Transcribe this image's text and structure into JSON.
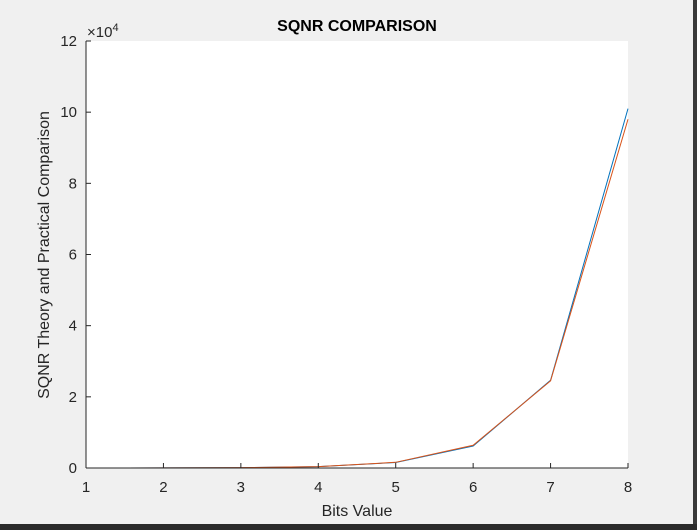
{
  "window": {
    "background": "#f0f0f0"
  },
  "chart_data": {
    "type": "line",
    "title": "SQNR COMPARISON",
    "xlabel": "Bits Value",
    "ylabel": "SQNR Theory and Practical Comparison",
    "xlim": [
      1,
      8
    ],
    "ylim": [
      0,
      120000
    ],
    "x_ticks": [
      "1",
      "2",
      "3",
      "4",
      "5",
      "6",
      "7",
      "8"
    ],
    "y_ticks": [
      "0",
      "2",
      "4",
      "6",
      "8",
      "10",
      "12"
    ],
    "y_exponent_base": "×10",
    "y_exponent_power": "4",
    "x": [
      1,
      2,
      3,
      4,
      5,
      6,
      7,
      8
    ],
    "series": [
      {
        "color": "#0072bd",
        "values": [
          6.03,
          24.1,
          96.4,
          385.5,
          1542,
          6168,
          24672,
          101000
        ]
      },
      {
        "color": "#d95319",
        "values": [
          6.5,
          25,
          100,
          400,
          1600,
          6400,
          24500,
          98000
        ]
      }
    ],
    "grid": false,
    "axes_background": "#ffffff"
  }
}
